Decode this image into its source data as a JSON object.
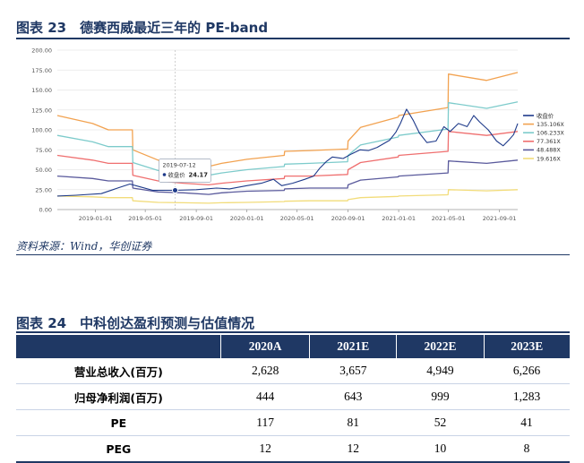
{
  "figure23": {
    "title": "图表 23　德赛西威最近三年的 PE-band",
    "source": "资料来源：Wind，华创证券"
  },
  "chart_data": {
    "type": "line",
    "ylim": [
      0,
      200
    ],
    "yticks": [
      "0.00",
      "25.00",
      "50.00",
      "75.00",
      "100.00",
      "125.00",
      "150.00",
      "175.00",
      "200.00"
    ],
    "xticks": [
      "2019-01-01",
      "2019-05-01",
      "2019-09-01",
      "2020-01-01",
      "2020-05-01",
      "2020-09-01",
      "2021-01-01",
      "2021-05-01",
      "2021-09-01"
    ],
    "x_range": [
      "2018-10-01",
      "2021-10-15"
    ],
    "legend_position": "right",
    "tooltip": {
      "date": "2019-07-12",
      "label": "收盘价",
      "value": "24.17"
    },
    "series": [
      {
        "name": "收盘价",
        "color": "#1e3a8a",
        "role": "price",
        "points": [
          [
            "2018-10-01",
            17
          ],
          [
            "2018-11-15",
            18
          ],
          [
            "2019-01-15",
            20
          ],
          [
            "2019-03-01",
            28
          ],
          [
            "2019-03-25",
            32
          ],
          [
            "2019-04-15",
            29
          ],
          [
            "2019-05-20",
            24
          ],
          [
            "2019-07-12",
            24.17
          ],
          [
            "2019-09-01",
            25
          ],
          [
            "2019-10-20",
            27
          ],
          [
            "2019-11-20",
            26
          ],
          [
            "2020-01-01",
            30
          ],
          [
            "2020-02-05",
            33
          ],
          [
            "2020-03-05",
            38
          ],
          [
            "2020-03-25",
            30
          ],
          [
            "2020-04-20",
            33
          ],
          [
            "2020-05-20",
            38
          ],
          [
            "2020-06-10",
            42
          ],
          [
            "2020-06-25",
            52
          ],
          [
            "2020-07-10",
            60
          ],
          [
            "2020-07-25",
            66
          ],
          [
            "2020-08-20",
            64
          ],
          [
            "2020-09-10",
            70
          ],
          [
            "2020-09-30",
            75
          ],
          [
            "2020-10-20",
            74
          ],
          [
            "2020-11-10",
            78
          ],
          [
            "2020-12-10",
            87
          ],
          [
            "2020-12-25",
            97
          ],
          [
            "2021-01-05",
            108
          ],
          [
            "2021-01-20",
            126
          ],
          [
            "2021-02-05",
            112
          ],
          [
            "2021-02-20",
            96
          ],
          [
            "2021-03-10",
            84
          ],
          [
            "2021-04-01",
            86
          ],
          [
            "2021-04-20",
            104
          ],
          [
            "2021-05-05",
            98
          ],
          [
            "2021-05-25",
            108
          ],
          [
            "2021-06-15",
            104
          ],
          [
            "2021-07-01",
            118
          ],
          [
            "2021-07-15",
            110
          ],
          [
            "2021-08-05",
            100
          ],
          [
            "2021-08-25",
            86
          ],
          [
            "2021-09-10",
            80
          ],
          [
            "2021-09-25",
            88
          ],
          [
            "2021-10-05",
            94
          ],
          [
            "2021-10-15",
            108
          ]
        ]
      },
      {
        "name": "135.106X",
        "color": "#f2a250",
        "points": [
          [
            "2018-10-01",
            118
          ],
          [
            "2018-12-25",
            108
          ],
          [
            "2019-02-01",
            100
          ],
          [
            "2019-03-31",
            100
          ],
          [
            "2019-04-01",
            75
          ],
          [
            "2019-06-01",
            62
          ],
          [
            "2019-08-01",
            58
          ],
          [
            "2019-10-01",
            54
          ],
          [
            "2019-11-01",
            58
          ],
          [
            "2020-01-01",
            63
          ],
          [
            "2020-03-31",
            68
          ],
          [
            "2020-04-01",
            73
          ],
          [
            "2020-06-01",
            74
          ],
          [
            "2020-08-31",
            76
          ],
          [
            "2020-09-01",
            86
          ],
          [
            "2020-10-01",
            103
          ],
          [
            "2020-12-31",
            116
          ],
          [
            "2021-01-01",
            118
          ],
          [
            "2021-04-30",
            128
          ],
          [
            "2021-05-01",
            170
          ],
          [
            "2021-08-01",
            162
          ],
          [
            "2021-10-15",
            172
          ]
        ]
      },
      {
        "name": "106.233X",
        "color": "#7dcbcb",
        "points": [
          [
            "2018-10-01",
            93
          ],
          [
            "2018-12-25",
            85
          ],
          [
            "2019-02-01",
            79
          ],
          [
            "2019-03-31",
            79
          ],
          [
            "2019-04-01",
            59
          ],
          [
            "2019-06-01",
            49
          ],
          [
            "2019-08-01",
            46
          ],
          [
            "2019-10-01",
            43
          ],
          [
            "2019-11-01",
            46
          ],
          [
            "2020-01-01",
            50
          ],
          [
            "2020-03-31",
            54
          ],
          [
            "2020-04-01",
            57
          ],
          [
            "2020-06-01",
            58
          ],
          [
            "2020-08-31",
            60
          ],
          [
            "2020-09-01",
            68
          ],
          [
            "2020-10-01",
            81
          ],
          [
            "2020-12-31",
            91
          ],
          [
            "2021-01-01",
            93
          ],
          [
            "2021-04-30",
            101
          ],
          [
            "2021-05-01",
            134
          ],
          [
            "2021-08-01",
            127
          ],
          [
            "2021-10-15",
            135
          ]
        ]
      },
      {
        "name": "77.361X",
        "color": "#ef6f6f",
        "points": [
          [
            "2018-10-01",
            68
          ],
          [
            "2018-12-25",
            62
          ],
          [
            "2019-02-01",
            58
          ],
          [
            "2019-03-31",
            58
          ],
          [
            "2019-04-01",
            43
          ],
          [
            "2019-06-01",
            36
          ],
          [
            "2019-08-01",
            33
          ],
          [
            "2019-10-01",
            31
          ],
          [
            "2019-11-01",
            33
          ],
          [
            "2020-01-01",
            36
          ],
          [
            "2020-03-31",
            39
          ],
          [
            "2020-04-01",
            42
          ],
          [
            "2020-06-01",
            42
          ],
          [
            "2020-08-31",
            44
          ],
          [
            "2020-09-01",
            50
          ],
          [
            "2020-10-01",
            59
          ],
          [
            "2020-12-31",
            66
          ],
          [
            "2021-01-01",
            68
          ],
          [
            "2021-04-30",
            73
          ],
          [
            "2021-05-01",
            98
          ],
          [
            "2021-08-01",
            93
          ],
          [
            "2021-10-15",
            98
          ]
        ]
      },
      {
        "name": "48.488X",
        "color": "#5a5a9c",
        "points": [
          [
            "2018-10-01",
            42
          ],
          [
            "2018-12-25",
            39
          ],
          [
            "2019-02-01",
            36
          ],
          [
            "2019-03-31",
            36
          ],
          [
            "2019-04-01",
            27
          ],
          [
            "2019-06-01",
            22
          ],
          [
            "2019-08-01",
            21
          ],
          [
            "2019-10-01",
            19
          ],
          [
            "2019-11-01",
            21
          ],
          [
            "2020-01-01",
            23
          ],
          [
            "2020-03-31",
            24
          ],
          [
            "2020-04-01",
            26
          ],
          [
            "2020-06-01",
            27
          ],
          [
            "2020-08-31",
            27
          ],
          [
            "2020-09-01",
            31
          ],
          [
            "2020-10-01",
            37
          ],
          [
            "2020-12-31",
            41
          ],
          [
            "2021-01-01",
            42
          ],
          [
            "2021-04-30",
            46
          ],
          [
            "2021-05-01",
            61
          ],
          [
            "2021-08-01",
            58
          ],
          [
            "2021-10-15",
            62
          ]
        ]
      },
      {
        "name": "19.616X",
        "color": "#f2dc7a",
        "points": [
          [
            "2018-10-01",
            17
          ],
          [
            "2018-12-25",
            16
          ],
          [
            "2019-02-01",
            15
          ],
          [
            "2019-03-31",
            15
          ],
          [
            "2019-04-01",
            11
          ],
          [
            "2019-06-01",
            9
          ],
          [
            "2019-08-01",
            8.5
          ],
          [
            "2019-10-01",
            8
          ],
          [
            "2019-11-01",
            8.5
          ],
          [
            "2020-01-01",
            9
          ],
          [
            "2020-03-31",
            10
          ],
          [
            "2020-04-01",
            10.5
          ],
          [
            "2020-06-01",
            11
          ],
          [
            "2020-08-31",
            11
          ],
          [
            "2020-09-01",
            12.5
          ],
          [
            "2020-10-01",
            15
          ],
          [
            "2020-12-31",
            16.5
          ],
          [
            "2021-01-01",
            17
          ],
          [
            "2021-04-30",
            18.5
          ],
          [
            "2021-05-01",
            25
          ],
          [
            "2021-08-01",
            23.5
          ],
          [
            "2021-10-15",
            25
          ]
        ]
      }
    ]
  },
  "figure24": {
    "title": "图表 24　中科创达盈利预测与估值情况",
    "columns": [
      "",
      "2020A",
      "2021E",
      "2022E",
      "2023E"
    ],
    "rows": [
      [
        "营业总收入(百万)",
        "2,628",
        "3,657",
        "4,949",
        "6,266"
      ],
      [
        "归母净利润(百万)",
        "444",
        "643",
        "999",
        "1,283"
      ],
      [
        "PE",
        "117",
        "81",
        "52",
        "41"
      ],
      [
        "PEG",
        "12",
        "12",
        "10",
        "8"
      ]
    ]
  }
}
